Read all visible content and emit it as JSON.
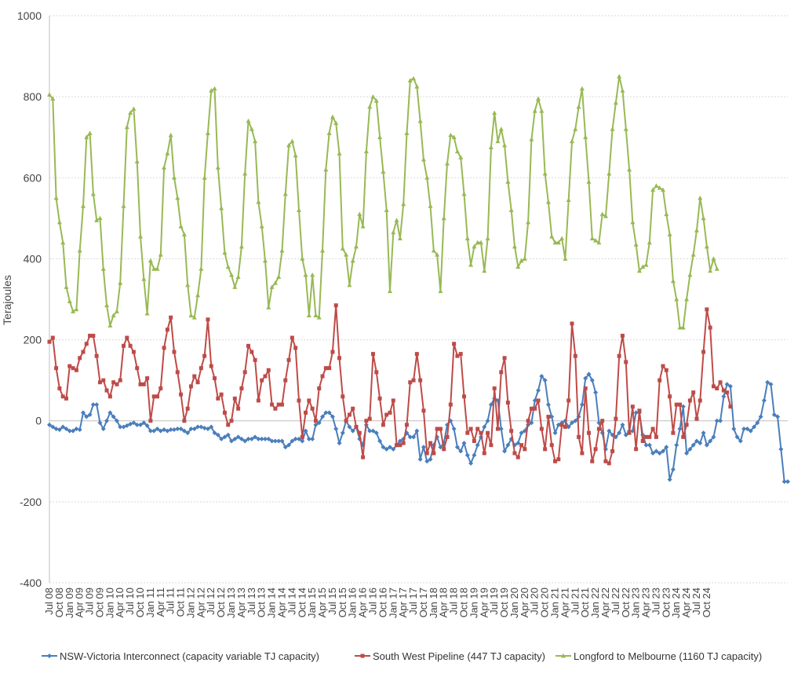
{
  "chart_data": {
    "type": "line",
    "title": "",
    "xlabel": "",
    "ylabel": "Terajoules",
    "ylim": [
      -400,
      1000
    ],
    "yticks": [
      -400,
      -200,
      0,
      200,
      400,
      600,
      800,
      1000
    ],
    "grid": "horizontal",
    "legend_position": "bottom",
    "x_tick_labels": [
      "Jul 08",
      "Oct 08",
      "Jan 09",
      "Apr 09",
      "Jul 09",
      "Oct 09",
      "Jan 10",
      "Apr 10",
      "Jul 10",
      "Oct 10",
      "Jan 11",
      "Apr 11",
      "Jul 11",
      "Oct 11",
      "Jan 12",
      "Apr 12",
      "Jul 12",
      "Oct 12",
      "Jan 13",
      "Apr 13",
      "Jul 13",
      "Oct 13",
      "Jan 14",
      "Apr 14",
      "Jul 14",
      "Oct 14",
      "Jan 15",
      "Apr 15",
      "Jul 15",
      "Oct 15",
      "Jan 16",
      "Apr 16",
      "Jul 16",
      "Oct 16",
      "Jan 17",
      "Apr 17",
      "Jul 17",
      "Oct 17",
      "Jan 18",
      "Apr 18",
      "Jul 18",
      "Oct 18",
      "Jan 19",
      "Apr 19",
      "Jul 19",
      "Oct 19",
      "Jan 20",
      "Apr 20",
      "Jul 20",
      "Oct 20",
      "Jan 21",
      "Apr 21",
      "Jul 21",
      "Oct 21",
      "Jan 22",
      "Apr 22",
      "Jul 22",
      "Oct 22",
      "Jan 23",
      "Apr 23",
      "Jul 23",
      "Oct 23",
      "Jan 24",
      "Apr 24",
      "Jul 24",
      "Oct 24"
    ],
    "series": [
      {
        "name": "NSW-Victoria Interconnect (capacity variable TJ capacity)",
        "color": "#4a7ebb",
        "marker": "diamond",
        "values": [
          -10,
          -15,
          -20,
          -22,
          -15,
          -20,
          -25,
          -25,
          -20,
          -22,
          20,
          10,
          15,
          40,
          40,
          -5,
          -20,
          0,
          20,
          10,
          0,
          -15,
          -15,
          -12,
          -8,
          -5,
          -10,
          -10,
          -5,
          -12,
          -25,
          -25,
          -20,
          -25,
          -22,
          -25,
          -22,
          -22,
          -20,
          -20,
          -25,
          -30,
          -20,
          -20,
          -15,
          -15,
          -18,
          -20,
          -15,
          -30,
          -35,
          -45,
          -40,
          -35,
          -50,
          -45,
          -40,
          -45,
          -50,
          -45,
          -45,
          -40,
          -45,
          -45,
          -45,
          -45,
          -50,
          -50,
          -50,
          -50,
          -65,
          -60,
          -50,
          -45,
          -45,
          -50,
          -25,
          -45,
          -45,
          -10,
          -5,
          10,
          20,
          20,
          10,
          -20,
          -55,
          -30,
          0,
          -15,
          -25,
          -15,
          -45,
          -60,
          -10,
          -25,
          -25,
          -30,
          -50,
          -65,
          -70,
          -65,
          -70,
          -60,
          -50,
          -45,
          -30,
          -40,
          -40,
          -25,
          -95,
          -65,
          -100,
          -95,
          -60,
          -40,
          -65,
          -55,
          -10,
          0,
          -20,
          -65,
          -75,
          -55,
          -85,
          -105,
          -85,
          -60,
          -40,
          -15,
          0,
          40,
          55,
          50,
          -20,
          -75,
          -60,
          -45,
          -60,
          -55,
          -30,
          -25,
          -10,
          -5,
          50,
          75,
          110,
          100,
          40,
          10,
          -30,
          -10,
          -5,
          0,
          -15,
          -5,
          0,
          10,
          40,
          105,
          115,
          100,
          70,
          -5,
          -30,
          -70,
          -25,
          -35,
          -40,
          -30,
          -10,
          -35,
          -25,
          -25,
          20,
          20,
          -35,
          -60,
          -60,
          -80,
          -75,
          -80,
          -75,
          -65,
          -145,
          -120,
          -60,
          -20,
          35,
          -80,
          -70,
          -60,
          -50,
          -55,
          -30,
          -60,
          -50,
          -40,
          0,
          0,
          60,
          90,
          85,
          -20,
          -40,
          -50,
          -20,
          -20,
          -25,
          -15,
          -5,
          10,
          50,
          95,
          90,
          15,
          10,
          -70,
          -150,
          -150
        ]
      },
      {
        "name": "South West Pipeline (447 TJ capacity)",
        "color": "#be4b48",
        "marker": "square",
        "values": [
          195,
          205,
          130,
          80,
          60,
          55,
          135,
          130,
          125,
          155,
          170,
          190,
          210,
          210,
          160,
          95,
          100,
          75,
          60,
          95,
          90,
          100,
          185,
          205,
          185,
          170,
          130,
          90,
          90,
          105,
          0,
          60,
          60,
          80,
          180,
          225,
          255,
          170,
          120,
          65,
          0,
          30,
          85,
          110,
          95,
          130,
          160,
          250,
          135,
          105,
          55,
          65,
          20,
          -10,
          0,
          55,
          30,
          80,
          120,
          185,
          170,
          150,
          50,
          100,
          110,
          125,
          40,
          30,
          40,
          40,
          100,
          150,
          205,
          180,
          50,
          -40,
          20,
          50,
          30,
          0,
          80,
          110,
          130,
          130,
          170,
          285,
          155,
          60,
          0,
          15,
          30,
          -15,
          -30,
          -90,
          0,
          5,
          165,
          120,
          55,
          -10,
          15,
          20,
          50,
          -60,
          -60,
          -55,
          -10,
          95,
          100,
          165,
          100,
          25,
          -80,
          -55,
          -80,
          -20,
          -20,
          -70,
          -40,
          40,
          190,
          160,
          165,
          60,
          -30,
          -20,
          -50,
          -20,
          -30,
          -80,
          -30,
          -60,
          80,
          -20,
          120,
          155,
          45,
          -25,
          -80,
          -90,
          -60,
          -70,
          0,
          30,
          30,
          50,
          -20,
          -70,
          10,
          -60,
          -100,
          -95,
          -10,
          -15,
          50,
          240,
          160,
          -40,
          -80,
          80,
          -30,
          -100,
          -70,
          -20,
          0,
          -100,
          -105,
          -75,
          5,
          160,
          210,
          145,
          -30,
          35,
          -70,
          25,
          -50,
          -40,
          -40,
          -20,
          -40,
          100,
          135,
          125,
          60,
          -30,
          40,
          40,
          -40,
          -10,
          50,
          70,
          5,
          50,
          170,
          275,
          230,
          85,
          80,
          95,
          75,
          70,
          35
        ]
      },
      {
        "name": "Longford to Melbourne (1160 TJ capacity)",
        "color": "#98b954",
        "marker": "triangle",
        "values": [
          805,
          795,
          550,
          490,
          440,
          330,
          295,
          270,
          275,
          420,
          530,
          700,
          710,
          560,
          495,
          500,
          375,
          285,
          235,
          260,
          270,
          340,
          530,
          725,
          760,
          770,
          640,
          455,
          350,
          265,
          395,
          375,
          375,
          410,
          625,
          660,
          705,
          600,
          550,
          480,
          460,
          335,
          260,
          255,
          310,
          375,
          600,
          710,
          815,
          820,
          625,
          525,
          415,
          380,
          360,
          330,
          355,
          430,
          610,
          740,
          720,
          690,
          540,
          480,
          395,
          280,
          330,
          340,
          355,
          420,
          560,
          680,
          690,
          655,
          520,
          400,
          360,
          260,
          360,
          260,
          255,
          420,
          620,
          710,
          750,
          735,
          660,
          425,
          410,
          335,
          395,
          430,
          510,
          480,
          665,
          775,
          800,
          790,
          700,
          615,
          520,
          320,
          465,
          495,
          450,
          535,
          710,
          840,
          845,
          825,
          740,
          645,
          600,
          530,
          420,
          410,
          320,
          500,
          635,
          705,
          700,
          665,
          650,
          560,
          450,
          385,
          430,
          440,
          440,
          370,
          450,
          675,
          760,
          690,
          720,
          680,
          590,
          520,
          430,
          380,
          395,
          400,
          490,
          695,
          765,
          795,
          765,
          610,
          540,
          455,
          440,
          440,
          450,
          400,
          545,
          690,
          720,
          775,
          820,
          700,
          590,
          450,
          445,
          440,
          510,
          505,
          610,
          720,
          785,
          850,
          815,
          720,
          620,
          490,
          435,
          370,
          380,
          385,
          440,
          570,
          580,
          575,
          570,
          510,
          460,
          345,
          300,
          230,
          230,
          300,
          360,
          410,
          470,
          550,
          500,
          430,
          370,
          400,
          375
        ]
      }
    ]
  }
}
